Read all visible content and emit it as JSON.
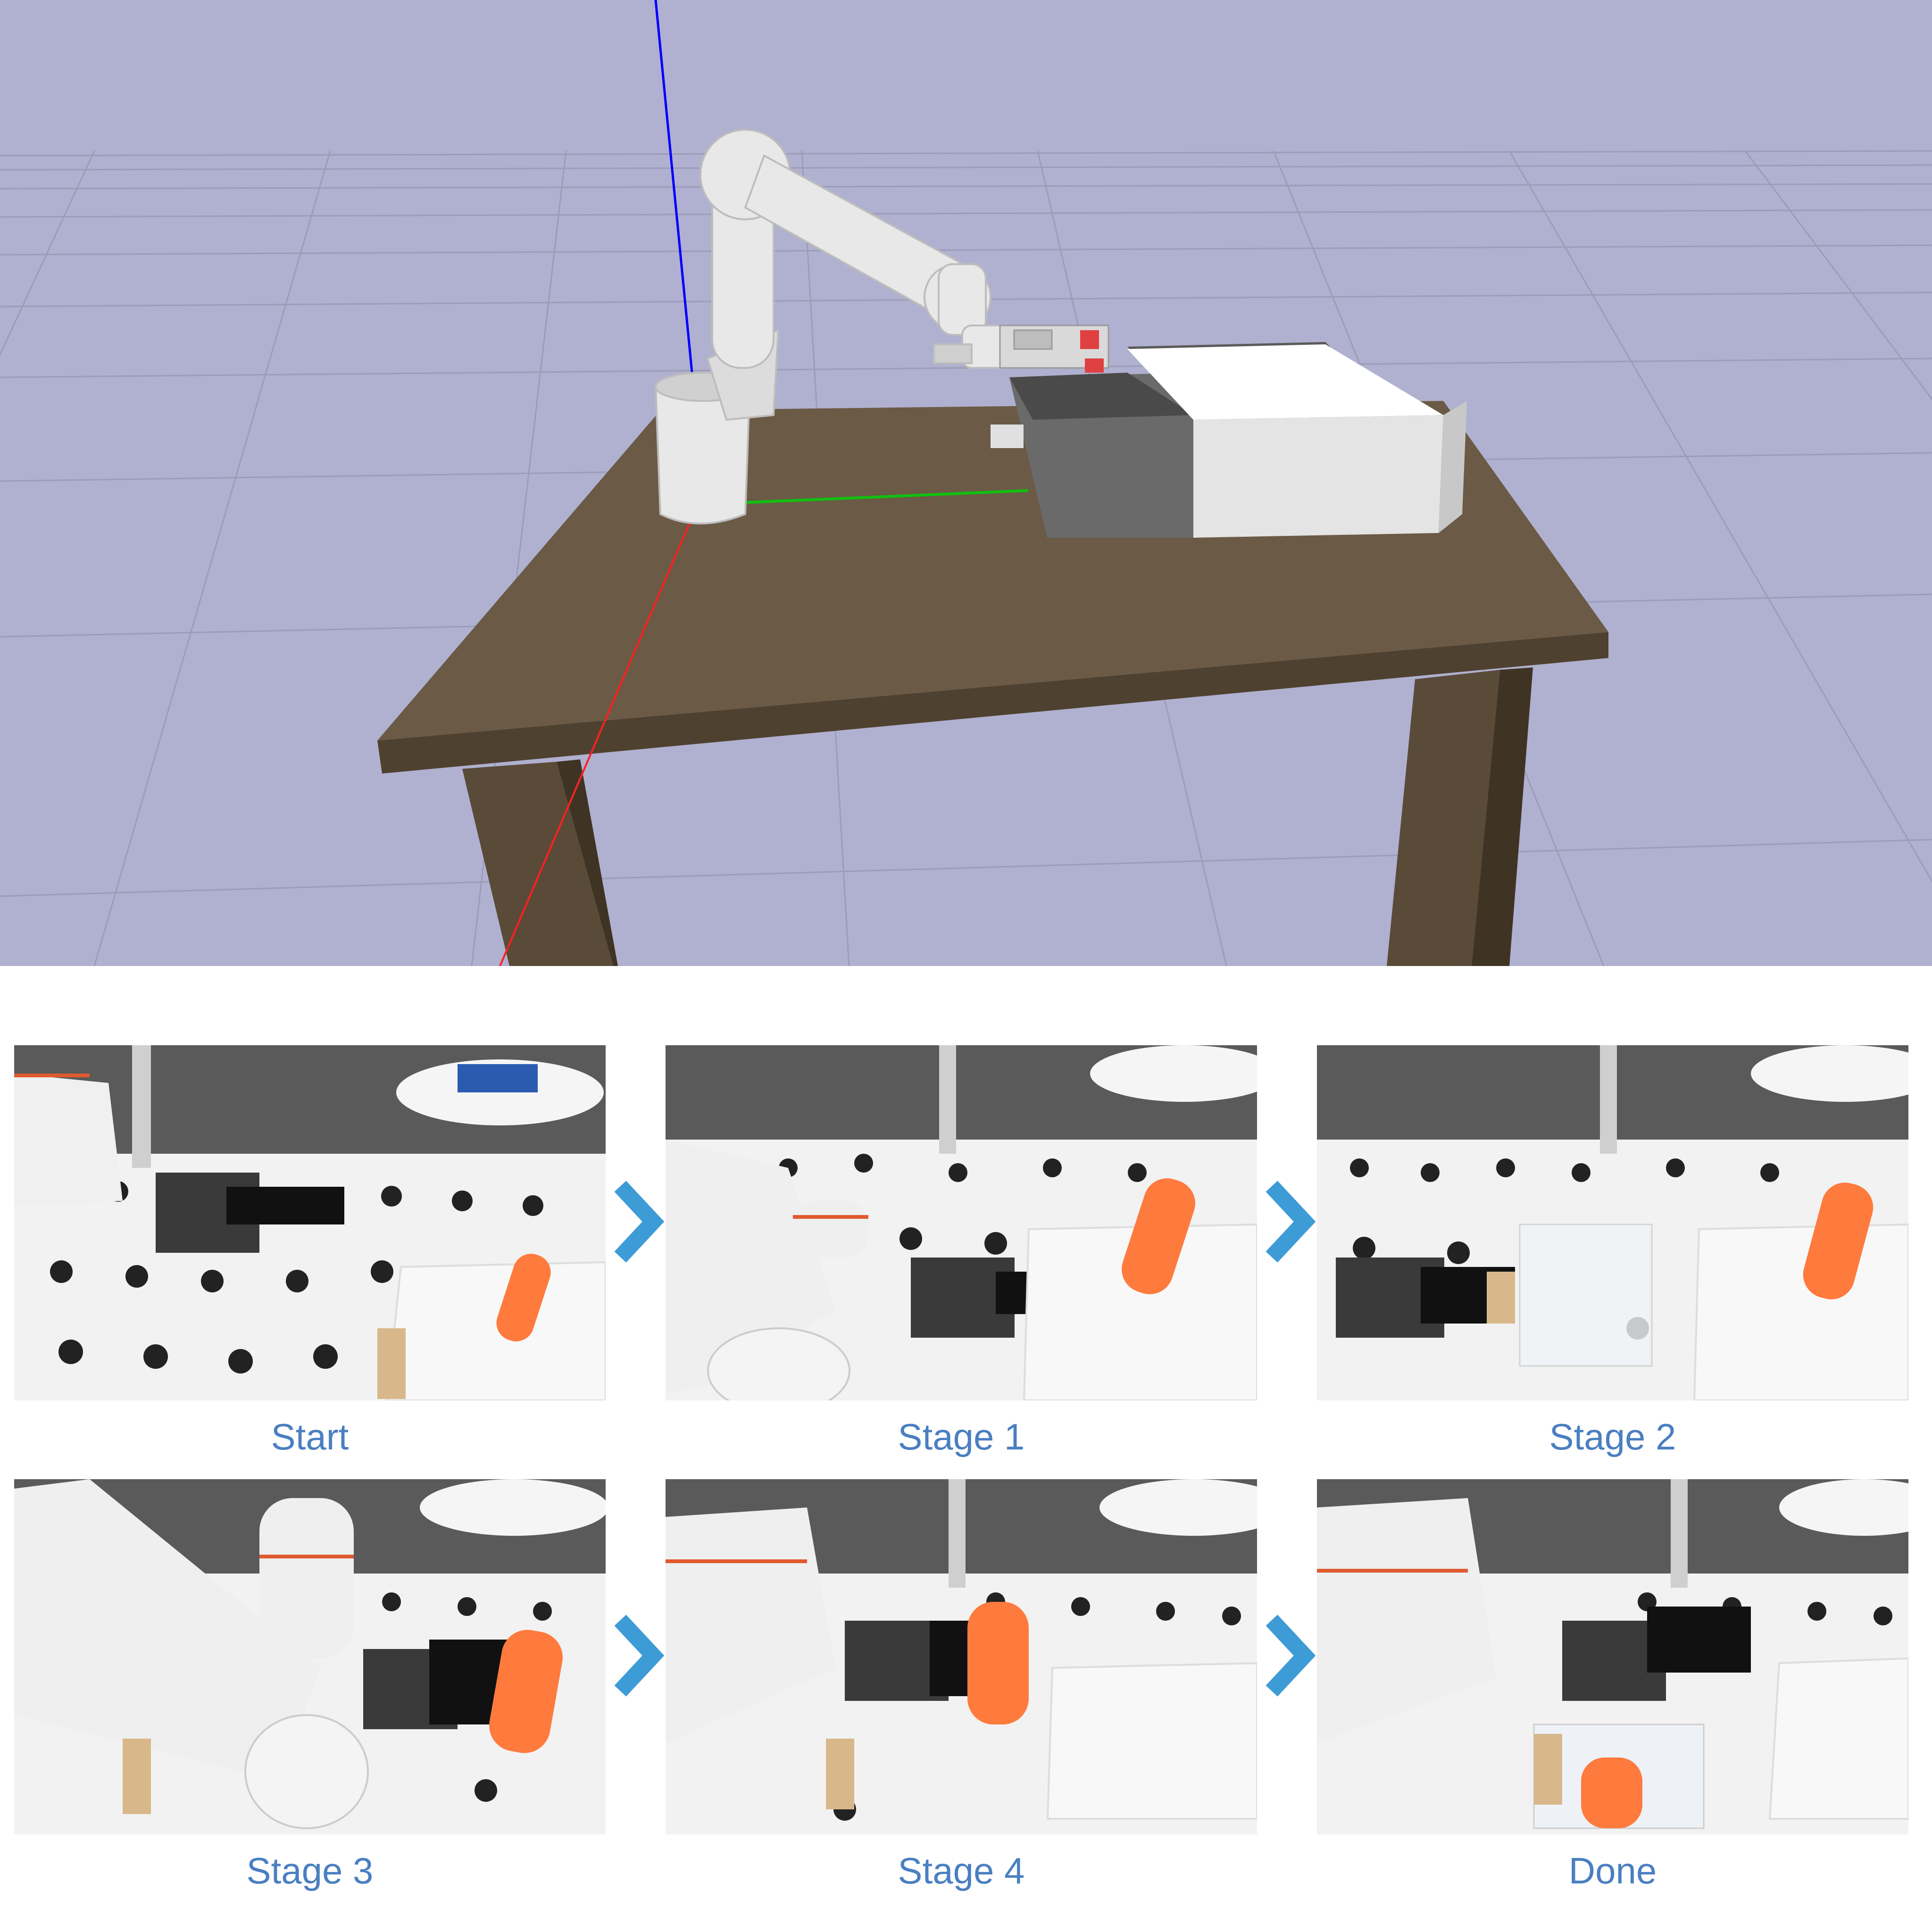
{
  "colors": {
    "sky": "#b0b0d0",
    "caption": "#4a7fc1",
    "arrow": "#3d9bd6",
    "table": "#6b5a45",
    "axis_x": "#ff2020",
    "axis_y": "#10c010",
    "axis_z": "#0000ff",
    "cylinder": "#ff7a3d"
  },
  "simulation": {
    "objects": [
      "robot-arm",
      "table",
      "drawer-box"
    ]
  },
  "sequence": {
    "panels": [
      {
        "label": "Start"
      },
      {
        "label": "Stage 1"
      },
      {
        "label": "Stage 2"
      },
      {
        "label": "Stage 3"
      },
      {
        "label": "Stage 4"
      },
      {
        "label": "Done"
      }
    ],
    "arrow_icon": "chevron-right-icon"
  }
}
